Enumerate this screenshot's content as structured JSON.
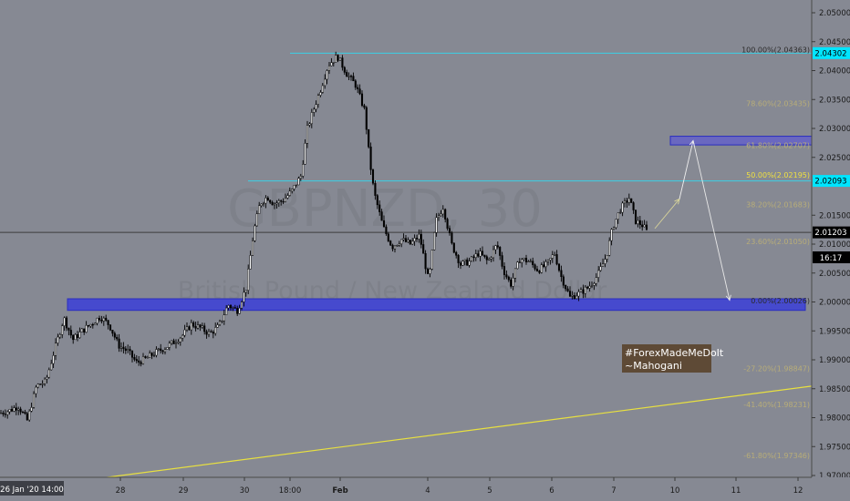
{
  "chart_data": {
    "type": "candlestick",
    "watermark": {
      "symbol": "GBPNZD, 30",
      "description": "British Pound / New Zealand Dollar"
    },
    "y_axis": {
      "ticks": [
        "2.05000",
        "2.04500",
        "2.04000",
        "2.03500",
        "2.03000",
        "2.02500",
        "2.01500",
        "2.01000",
        "2.00500",
        "2.00000",
        "1.99500",
        "1.99000",
        "1.98500",
        "1.98000",
        "1.97500",
        "1.97000"
      ],
      "range": [
        1.9695,
        2.0525
      ]
    },
    "x_axis": {
      "ticks": [
        "28",
        "29",
        "30",
        "18:00",
        "Feb",
        "4",
        "5",
        "6",
        "7",
        "10",
        "11",
        "12"
      ],
      "cursor_label": "26 Jan '20  14:00"
    },
    "price_labels": [
      {
        "text": "2.04302",
        "value": 2.04302,
        "bg": "#00e5ff",
        "fg": "#000000"
      },
      {
        "text": "2.02093",
        "value": 2.02093,
        "bg": "#00e5ff",
        "fg": "#000000"
      },
      {
        "text": "2.01203",
        "value": 2.01203,
        "bg": "#000000",
        "fg": "#ffffff"
      }
    ],
    "countdown": "16:17",
    "fibonacci": [
      {
        "label": "100.00%(2.04363)",
        "value": 2.04363,
        "color": "#2b2b2b"
      },
      {
        "label": "78.60%(2.03435)",
        "value": 2.03435,
        "color": "#b8ad78"
      },
      {
        "label": "61.80%(2.02707)",
        "value": 2.02707,
        "color": "#b8ad78"
      },
      {
        "label": "50.00%(2.02195)",
        "value": 2.02195,
        "color": "#f0e040"
      },
      {
        "label": "38.20%(2.01683)",
        "value": 2.01683,
        "color": "#b8ad78"
      },
      {
        "label": "23.60%(2.01050)",
        "value": 2.0105,
        "color": "#b8ad78"
      },
      {
        "label": "0.00%(2.00026)",
        "value": 2.00026,
        "color": "#2b2b2b"
      },
      {
        "label": "-27.20%(1.98847)",
        "value": 1.98847,
        "color": "#b8ad78"
      },
      {
        "label": "-41.40%(1.98231)",
        "value": 1.98231,
        "color": "#b8ad78"
      },
      {
        "label": "-61.80%(1.97346)",
        "value": 1.97346,
        "color": "#b8ad78"
      }
    ],
    "zones": [
      {
        "name": "support-zone",
        "from": 1.99855,
        "to": 2.00055,
        "color": "#3b3fd8"
      },
      {
        "name": "target-zone",
        "from": 2.02715,
        "to": 2.02865,
        "color": "#6563c8"
      }
    ],
    "levels": [
      {
        "name": "high-line",
        "value": 2.04302,
        "color": "#3ad2e6"
      },
      {
        "name": "resistance-line",
        "value": 2.02093,
        "color": "#3ad2e6"
      },
      {
        "name": "last-price-line",
        "value": 2.01203,
        "color": "#3d3d3d"
      }
    ],
    "trendline": {
      "from": 1.9695,
      "to": 1.98545,
      "color": "#e8e040"
    },
    "path": [
      [
        0,
        1.9808
      ],
      [
        10,
        1.9812
      ],
      [
        20,
        1.982
      ],
      [
        30,
        1.9795
      ],
      [
        40,
        1.9855
      ],
      [
        50,
        1.9862
      ],
      [
        60,
        1.9918
      ],
      [
        70,
        1.9972
      ],
      [
        80,
        1.9935
      ],
      [
        90,
        1.995
      ],
      [
        100,
        1.9962
      ],
      [
        110,
        1.9975
      ],
      [
        120,
        1.996
      ],
      [
        130,
        1.9925
      ],
      [
        140,
        1.9915
      ],
      [
        150,
        1.9895
      ],
      [
        160,
        1.9902
      ],
      [
        170,
        1.9912
      ],
      [
        180,
        1.992
      ],
      [
        190,
        1.993
      ],
      [
        200,
        1.9942
      ],
      [
        210,
        1.9962
      ],
      [
        220,
        1.9955
      ],
      [
        230,
        1.9945
      ],
      [
        240,
        1.9958
      ],
      [
        250,
        1.9995
      ],
      [
        260,
        1.9985
      ],
      [
        270,
        2.0025
      ],
      [
        278,
        2.012
      ],
      [
        285,
        2.017
      ],
      [
        293,
        2.0182
      ],
      [
        300,
        2.017
      ],
      [
        310,
        2.0175
      ],
      [
        320,
        2.0192
      ],
      [
        330,
        2.0218
      ],
      [
        337,
        2.03
      ],
      [
        345,
        2.0338
      ],
      [
        352,
        2.037
      ],
      [
        360,
        2.041
      ],
      [
        370,
        2.0425
      ],
      [
        380,
        2.0395
      ],
      [
        390,
        2.0375
      ],
      [
        400,
        2.033
      ],
      [
        405,
        2.025
      ],
      [
        410,
        2.019
      ],
      [
        420,
        2.013
      ],
      [
        430,
        2.0095
      ],
      [
        440,
        2.0108
      ],
      [
        450,
        2.01
      ],
      [
        460,
        2.0115
      ],
      [
        470,
        2.0035
      ],
      [
        478,
        2.014
      ],
      [
        486,
        2.0165
      ],
      [
        495,
        2.01
      ],
      [
        505,
        2.0065
      ],
      [
        515,
        2.007
      ],
      [
        525,
        2.0085
      ],
      [
        535,
        2.007
      ],
      [
        545,
        2.01
      ],
      [
        552,
        2.0055
      ],
      [
        560,
        2.003
      ],
      [
        570,
        2.0075
      ],
      [
        580,
        2.007
      ],
      [
        590,
        2.0055
      ],
      [
        600,
        2.0065
      ],
      [
        608,
        2.0085
      ],
      [
        615,
        2.0045
      ],
      [
        625,
        2.0008
      ],
      [
        635,
        2.0015
      ],
      [
        645,
        2.0025
      ],
      [
        655,
        2.0045
      ],
      [
        665,
        2.008
      ],
      [
        672,
        2.013
      ],
      [
        680,
        2.016
      ],
      [
        690,
        2.018
      ],
      [
        697,
        2.014
      ],
      [
        705,
        2.0132
      ],
      [
        710,
        2.012
      ]
    ],
    "projection": [
      [
        718,
        2.0127
      ],
      [
        745,
        2.0178
      ],
      [
        760,
        2.0279
      ],
      [
        800,
        2.0003
      ]
    ],
    "annotation": {
      "lines": [
        "#ForexMadeMeDoIt",
        "~Mahogani"
      ],
      "bg": "#5e4a36"
    }
  }
}
